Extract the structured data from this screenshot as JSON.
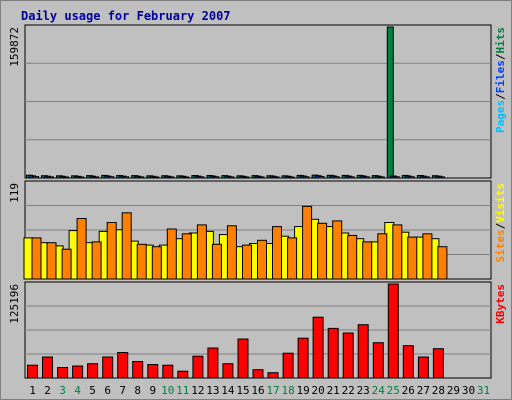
{
  "page": {
    "title": "Daily usage for February 2007"
  },
  "colors": {
    "background": "#c0c0c0",
    "panel": "#c0c0c0",
    "grid": "#808080",
    "title": "#0000a0",
    "hits": "#008040",
    "files": "#0040ff",
    "pages": "#00c0ff",
    "visits": "#ffff00",
    "sites": "#ff8000",
    "kbytes": "#ff0000",
    "label_black": "#000000",
    "weekend_label": "#008040"
  },
  "chart_data": [
    {
      "type": "bar",
      "panel": "hits_files_pages",
      "ymax_label": "159872",
      "ylim": [
        0,
        159872
      ],
      "legend": [
        {
          "text": "Pages",
          "color": "#00c0ff"
        },
        {
          "text": "/",
          "color": "#000000"
        },
        {
          "text": "Files",
          "color": "#0040ff"
        },
        {
          "text": "/",
          "color": "#000000"
        },
        {
          "text": "Hits",
          "color": "#008040"
        }
      ],
      "series": [
        {
          "name": "Hits",
          "values": [
            3000,
            2400,
            2300,
            2300,
            2500,
            2700,
            2600,
            2500,
            2300,
            2400,
            2300,
            2600,
            2600,
            2500,
            2300,
            2500,
            2400,
            2300,
            2700,
            3100,
            2900,
            2700,
            2700,
            2500,
            159872,
            2700,
            2600,
            2400
          ]
        },
        {
          "name": "Files",
          "values": [
            2300,
            1900,
            1800,
            1800,
            1900,
            2100,
            2000,
            1900,
            1800,
            1900,
            1800,
            2000,
            2000,
            1900,
            1800,
            1900,
            1900,
            1800,
            2100,
            2400,
            2200,
            2100,
            2100,
            1900,
            2100,
            2100,
            2000,
            1900
          ]
        },
        {
          "name": "Pages",
          "values": [
            1500,
            1200,
            1100,
            1100,
            1200,
            1400,
            1300,
            1200,
            1100,
            1200,
            1100,
            1300,
            1300,
            1200,
            1100,
            1200,
            1200,
            1100,
            1300,
            1500,
            1400,
            1300,
            1300,
            1200,
            1300,
            1300,
            1200,
            1200
          ]
        }
      ]
    },
    {
      "type": "bar",
      "panel": "visits_sites",
      "ymax_label": "119",
      "ylim": [
        0,
        119
      ],
      "legend": [
        {
          "text": "Sites",
          "color": "#ff8000"
        },
        {
          "text": "/",
          "color": "#000000"
        },
        {
          "text": "Visits",
          "color": "#ffff00"
        }
      ],
      "series": [
        {
          "name": "Visits",
          "values": [
            51,
            45,
            41,
            60,
            45,
            59,
            61,
            47,
            42,
            42,
            50,
            57,
            59,
            55,
            40,
            44,
            44,
            53,
            65,
            74,
            65,
            57,
            50,
            46,
            70,
            58,
            52,
            50
          ]
        },
        {
          "name": "Sites",
          "values": [
            51,
            45,
            37,
            75,
            46,
            70,
            82,
            43,
            40,
            62,
            56,
            67,
            43,
            66,
            42,
            48,
            65,
            51,
            90,
            69,
            72,
            54,
            46,
            56,
            67,
            52,
            56,
            40
          ]
        }
      ]
    },
    {
      "type": "bar",
      "panel": "kbytes",
      "ymax_label": "125196",
      "ylim": [
        0,
        125196
      ],
      "legend": [
        {
          "text": "KBytes",
          "color": "#ff0000"
        }
      ],
      "series": [
        {
          "name": "KBytes",
          "values": [
            17000,
            28000,
            14000,
            16000,
            19000,
            28000,
            34000,
            22000,
            18000,
            17000,
            9000,
            29000,
            40000,
            19000,
            52000,
            11000,
            7000,
            33000,
            53000,
            81000,
            66000,
            60000,
            71000,
            47000,
            125196,
            43000,
            28000,
            39000
          ]
        }
      ]
    }
  ],
  "x_axis": {
    "labels": [
      {
        "text": "1",
        "color": "#000000"
      },
      {
        "text": "2",
        "color": "#000000"
      },
      {
        "text": "3",
        "color": "#008040"
      },
      {
        "text": "4",
        "color": "#008040"
      },
      {
        "text": "5",
        "color": "#000000"
      },
      {
        "text": "6",
        "color": "#000000"
      },
      {
        "text": "7",
        "color": "#000000"
      },
      {
        "text": "8",
        "color": "#000000"
      },
      {
        "text": "9",
        "color": "#000000"
      },
      {
        "text": "10",
        "color": "#008040"
      },
      {
        "text": "11",
        "color": "#008040"
      },
      {
        "text": "12",
        "color": "#000000"
      },
      {
        "text": "13",
        "color": "#000000"
      },
      {
        "text": "14",
        "color": "#000000"
      },
      {
        "text": "15",
        "color": "#000000"
      },
      {
        "text": "16",
        "color": "#000000"
      },
      {
        "text": "17",
        "color": "#008040"
      },
      {
        "text": "18",
        "color": "#008040"
      },
      {
        "text": "19",
        "color": "#000000"
      },
      {
        "text": "20",
        "color": "#000000"
      },
      {
        "text": "21",
        "color": "#000000"
      },
      {
        "text": "22",
        "color": "#000000"
      },
      {
        "text": "23",
        "color": "#000000"
      },
      {
        "text": "24",
        "color": "#008040"
      },
      {
        "text": "25",
        "color": "#008040"
      },
      {
        "text": "26",
        "color": "#000000"
      },
      {
        "text": "27",
        "color": "#000000"
      },
      {
        "text": "28",
        "color": "#000000"
      },
      {
        "text": "29",
        "color": "#000000"
      },
      {
        "text": "30",
        "color": "#000000"
      },
      {
        "text": "31",
        "color": "#008040"
      }
    ]
  }
}
